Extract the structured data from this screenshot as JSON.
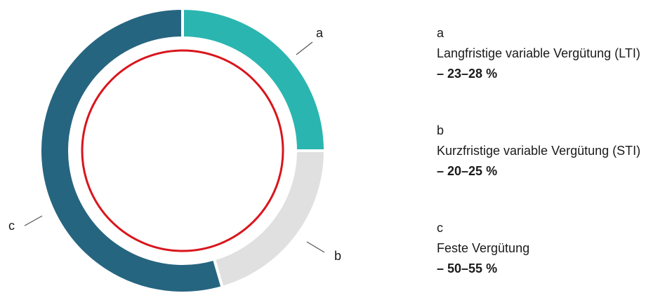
{
  "chart_data": {
    "type": "donut",
    "categories": [
      "a",
      "b",
      "c"
    ],
    "values": [
      25,
      20.5,
      54.5
    ],
    "colors": [
      "#2bb5b0",
      "#e0e0e0",
      "#266580"
    ],
    "details": [
      {
        "name": "Langfristige variable Vergütung (LTI)",
        "range": "– 23–28 %"
      },
      {
        "name": "Kurzfristige variable Vergütung (STI)",
        "range": "– 20–25 %"
      },
      {
        "name": "Feste Vergütung",
        "range": "– 50–55 %"
      }
    ]
  }
}
